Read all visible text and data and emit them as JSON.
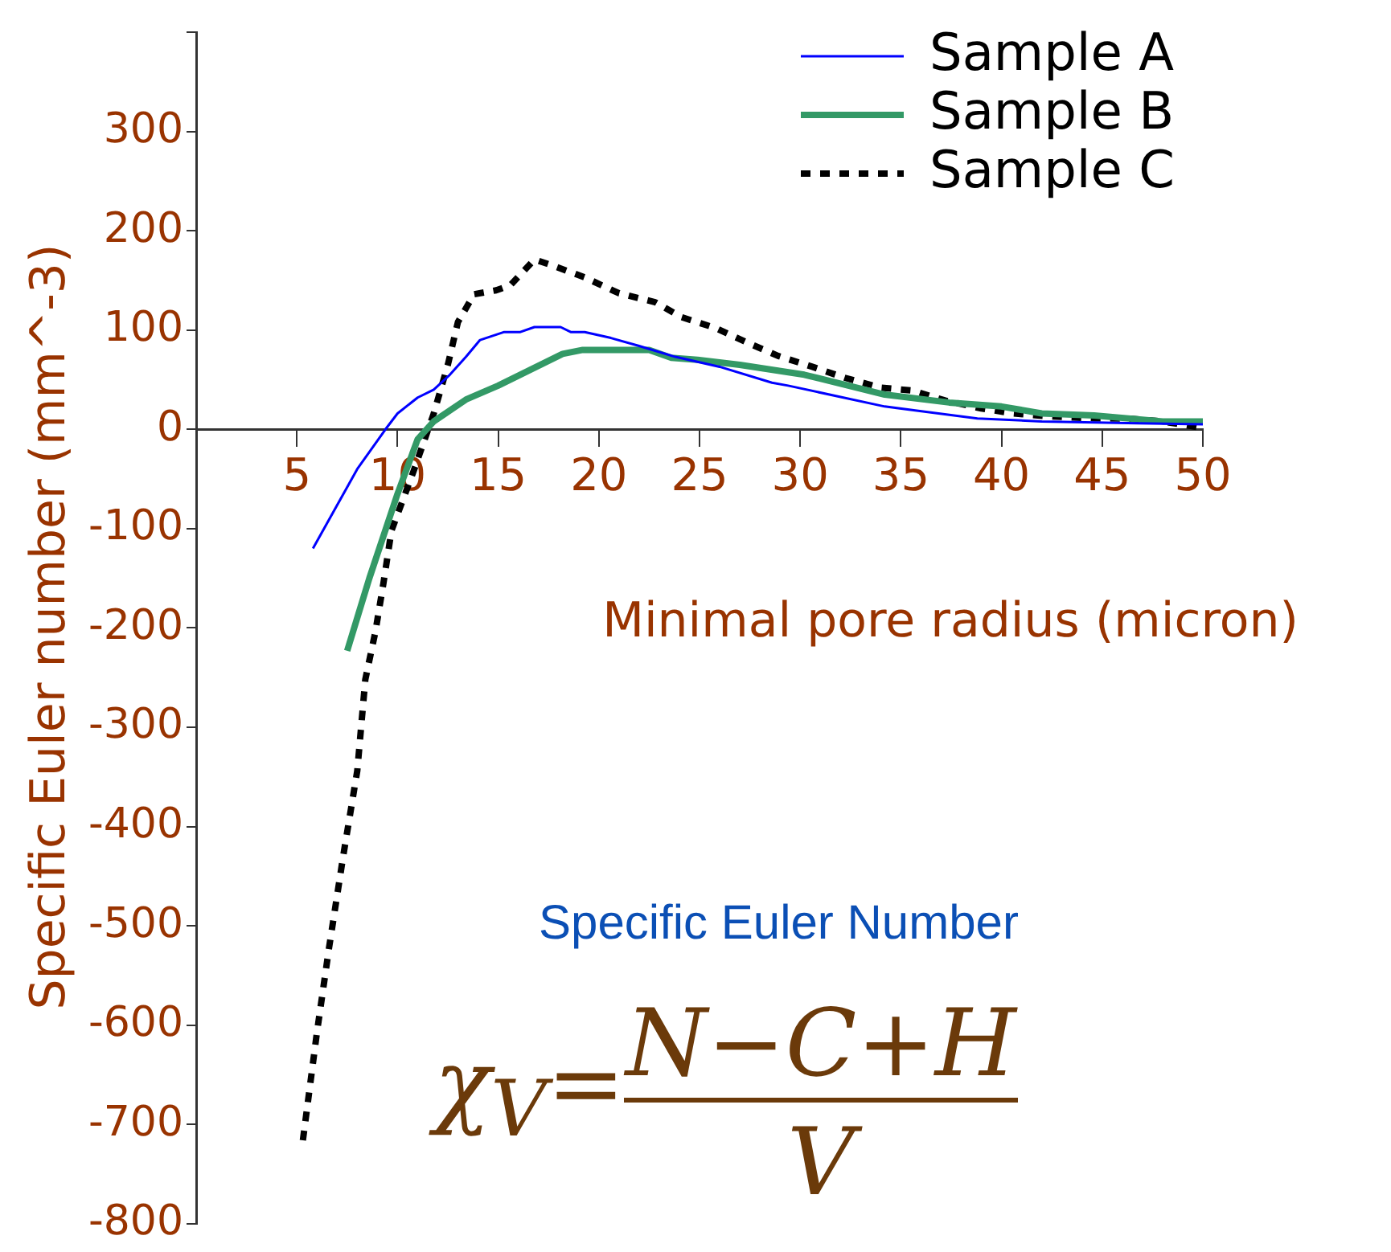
{
  "chart_data": {
    "type": "line",
    "xlabel": "Minimal pore radius (micron)",
    "ylabel": "Specific Euler number (mm^-3)",
    "annotations": [
      "Specific Euler Number",
      "χ$_{V}$=",
      "N−C+H",
      "V"
    ],
    "xlim": [
      0,
      50
    ],
    "xticks": [
      5,
      10,
      15,
      20,
      25,
      30,
      35,
      40,
      45,
      50
    ],
    "ylim": [
      -800,
      400
    ],
    "yticks": [
      -800,
      -700,
      -600,
      -500,
      -400,
      -300,
      -200,
      -100,
      0,
      100,
      200,
      300,
      {
        "value": 400,
        "label": null
      }
    ],
    "grid": false,
    "legend": "top right",
    "marker": "none",
    "series": [
      {
        "name": "Sample A",
        "color": "#0000ff",
        "line_style": "solid",
        "x": [
          5.8,
          8.0,
          9.4,
          10,
          11,
          11.8,
          12.6,
          13.4,
          14.1,
          15.3,
          16.1,
          16.8,
          18.1,
          18.6,
          19.3,
          20.6,
          22.0,
          23.8,
          26,
          28.6,
          29.4,
          34.2,
          38.8,
          42,
          46.8,
          50
        ],
        "values": [
          -120,
          -40,
          0,
          16,
          32,
          40,
          55,
          73,
          90,
          98,
          98,
          103,
          103,
          98,
          98,
          92,
          84,
          73,
          63,
          47,
          44,
          23,
          11,
          8,
          6,
          5
        ]
      },
      {
        "name": "Sample B",
        "color": "#339966",
        "line_style": "solid",
        "x": [
          7.5,
          8.6,
          10,
          11,
          11.8,
          13.4,
          15,
          16.6,
          18.2,
          19.2,
          22.5,
          23.6,
          24.9,
          27,
          30.2,
          34.2,
          37.4,
          40,
          42,
          44.6,
          48,
          50
        ],
        "values": [
          -223,
          -150,
          -65,
          -10,
          8,
          30,
          44,
          60,
          76,
          80,
          80,
          72,
          70,
          65,
          55,
          35,
          27,
          23,
          16,
          14,
          8,
          8
        ]
      },
      {
        "name": "Sample C",
        "color": "#000000",
        "line_style": "dotted",
        "x": [
          5.3,
          6.0,
          6.6,
          7.3,
          8.0,
          8.4,
          8.9,
          9.3,
          9.7,
          10.8,
          11.8,
          12.5,
          13.0,
          13.8,
          14.9,
          15.6,
          16.8,
          17.7,
          19.3,
          21,
          22.8,
          24.1,
          25.8,
          27.4,
          28.9,
          30.6,
          32.2,
          34,
          35.6,
          37.2,
          39,
          40.6,
          42.4,
          44.6,
          46.2,
          48,
          49.8
        ],
        "values": [
          -716,
          -607,
          -522,
          -430,
          -344,
          -252,
          -204,
          -155,
          -102,
          -42,
          16,
          65,
          108,
          136,
          140,
          145,
          171,
          165,
          153,
          137,
          128,
          113,
          102,
          87,
          74,
          63,
          52,
          42,
          39,
          29,
          21,
          16,
          13,
          11,
          11,
          8,
          2
        ]
      }
    ]
  }
}
